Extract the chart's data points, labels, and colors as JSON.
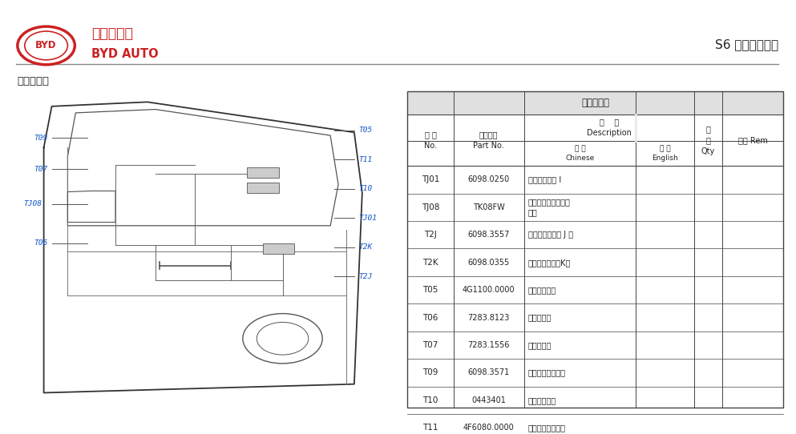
{
  "bg_color": "#ffffff",
  "header_line_color": "#888888",
  "byd_red": "#cc2222",
  "title_right": "S6 轿车电路图册",
  "section_title": "左前门线束",
  "table_title": "左前门线束",
  "label_color": "#1155cc",
  "rows": [
    [
      "TJ01",
      "6098.0250",
      "接仪表板线束 I"
    ],
    [
      "TJ08",
      "TK08FW",
      "接左前磁卡探测天线\n引线"
    ],
    [
      "T2J",
      "6098.3557",
      "接仪表板配电盒 J 口"
    ],
    [
      "T2K",
      "6098.0355",
      "接仪表板配电盒K口"
    ],
    [
      "T05",
      "4G1100.0000",
      "接电动后视镜"
    ],
    [
      "T06",
      "7283.8123",
      "接左前门灯"
    ],
    [
      "T07",
      "7283.1556",
      "接门锁电机"
    ],
    [
      "T09",
      "6098.3571",
      "接玻璃升降器开关"
    ],
    [
      "T10",
      "0443401",
      "接左前扬声器"
    ],
    [
      "T11",
      "4F6080.0000",
      "接玻璃升降器电机"
    ]
  ]
}
